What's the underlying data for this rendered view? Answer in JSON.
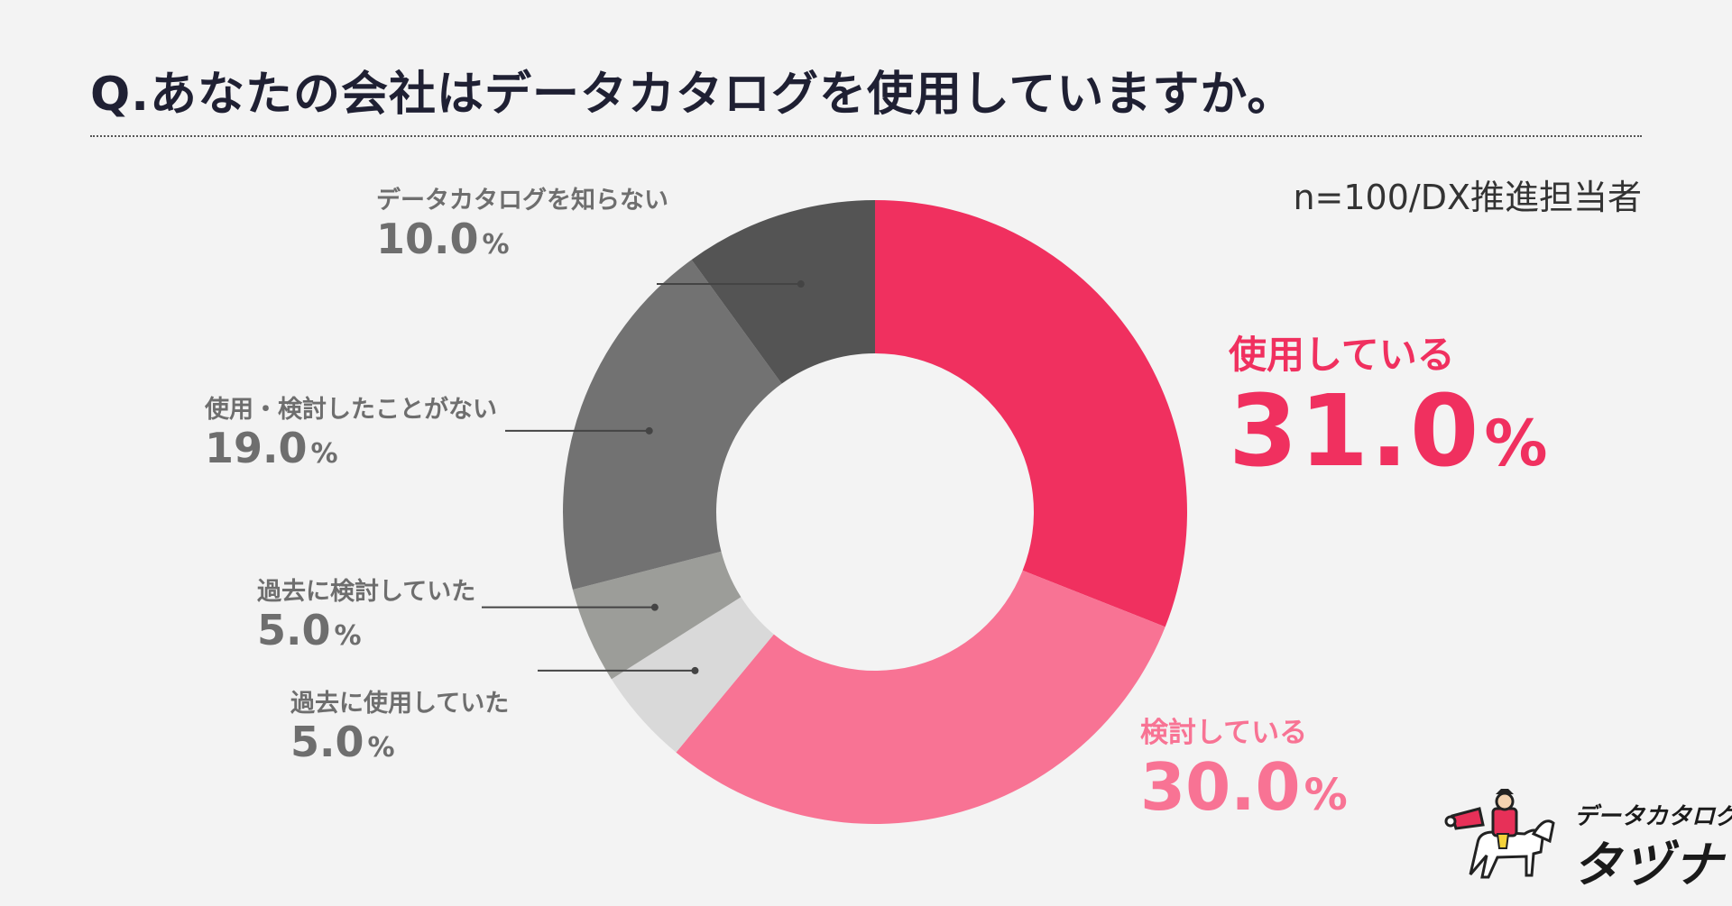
{
  "title": "Q.あなたの会社はデータカタログを使用していますか。",
  "sample_note": "n=100/DX推進担当者",
  "percent_sign": "%",
  "chart_data": {
    "type": "pie",
    "variant": "donut",
    "title": "Q.あなたの会社はデータカタログを使用していますか。",
    "slices": [
      {
        "label": "使用している",
        "value": 31.0,
        "display": "31.0",
        "color": "#f0305f"
      },
      {
        "label": "検討している",
        "value": 30.0,
        "display": "30.0",
        "color": "#f87394"
      },
      {
        "label": "過去に使用していた",
        "value": 5.0,
        "display": "5.0",
        "color": "#d9d9d9"
      },
      {
        "label": "過去に検討していた",
        "value": 5.0,
        "display": "5.0",
        "color": "#9c9d99"
      },
      {
        "label": "使用・検討したことがない",
        "value": 19.0,
        "display": "19.0",
        "color": "#727272"
      },
      {
        "label": "データカタログを知らない",
        "value": 10.0,
        "display": "10.0",
        "color": "#545454"
      }
    ]
  },
  "logo": {
    "line1": "データカタログ",
    "line2": "タヅナ",
    "icon": "horse-rider-mascot-icon"
  }
}
